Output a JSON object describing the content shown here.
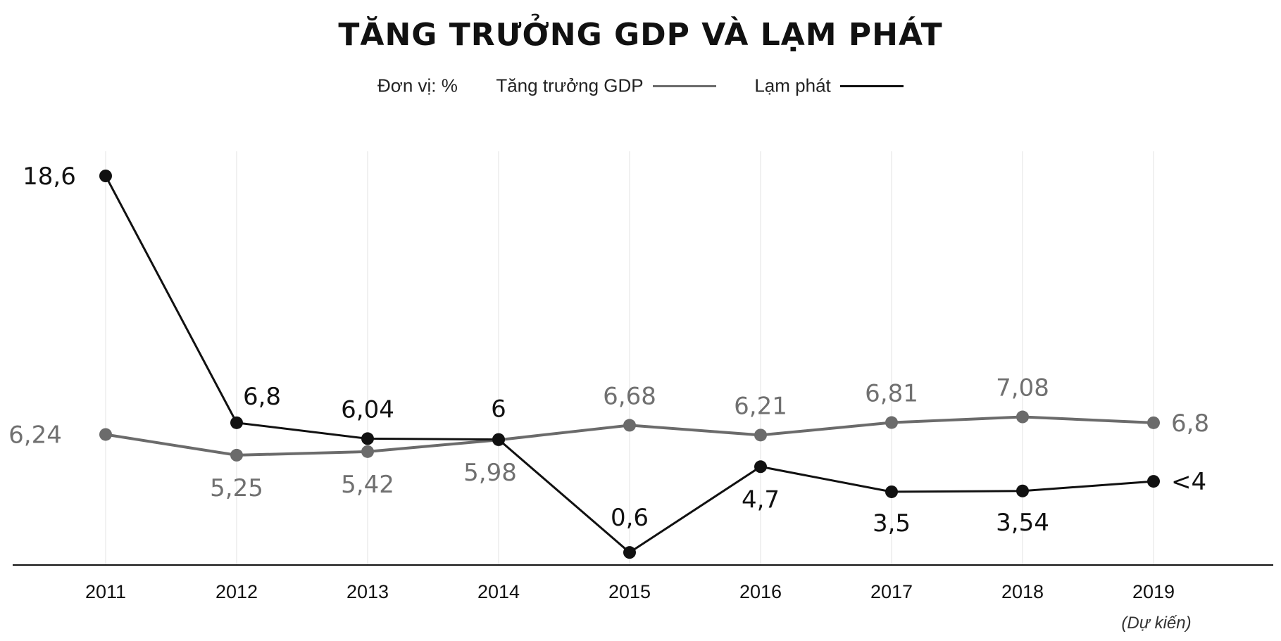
{
  "chart_data": {
    "type": "line",
    "title": "TĂNG TRƯỞNG GDP VÀ LẠM PHÁT",
    "unit_label": "Đơn vị: %",
    "categories": [
      "2011",
      "2012",
      "2013",
      "2014",
      "2015",
      "2016",
      "2017",
      "2018",
      "2019"
    ],
    "category_note": {
      "index": 8,
      "text": "(Dự kiến)"
    },
    "series": [
      {
        "name": "Tăng trưởng GDP",
        "color": "#6b6b6b",
        "values": [
          6.24,
          5.25,
          5.42,
          5.98,
          6.68,
          6.21,
          6.81,
          7.08,
          6.8
        ],
        "labels": [
          "6,24",
          "5,25",
          "5,42",
          "5,98",
          "6,68",
          "6,21",
          "6,81",
          "7,08",
          "6,8"
        ]
      },
      {
        "name": "Lạm phát",
        "color": "#111111",
        "values": [
          18.6,
          6.8,
          6.04,
          6,
          0.6,
          4.7,
          3.5,
          3.54,
          4
        ],
        "labels": [
          "18,6",
          "6,8",
          "6,04",
          "6",
          "0,6",
          "4,7",
          "3,5",
          "3,54",
          "<4"
        ]
      }
    ],
    "ylim": [
      0,
      20
    ],
    "grid": true,
    "legend_position": "top"
  }
}
